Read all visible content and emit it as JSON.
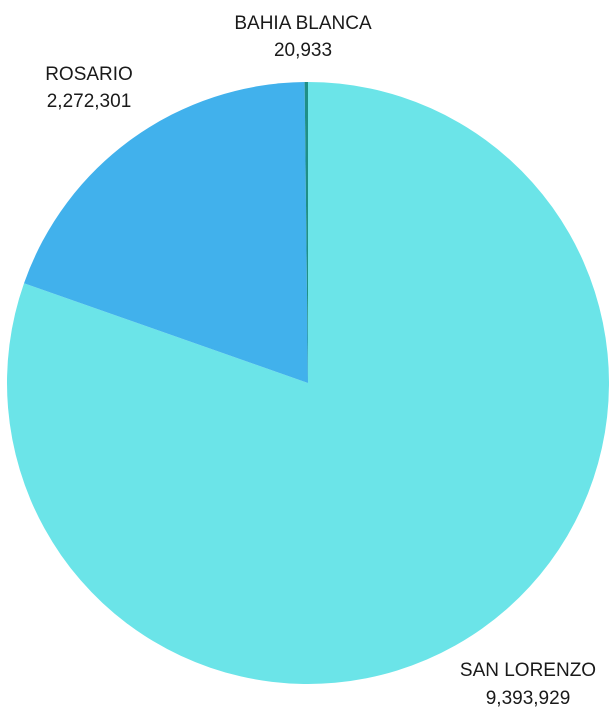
{
  "chart_data": {
    "type": "pie",
    "title": "",
    "slices": [
      {
        "label": "SAN LORENZO",
        "value": 9393929,
        "value_label": "9,393,929",
        "color": "#6be4e8"
      },
      {
        "label": "ROSARIO",
        "value": 2272301,
        "value_label": "2,272,301",
        "color": "#41b1ec"
      },
      {
        "label": "BAHIA BLANCA",
        "value": 20933,
        "value_label": "20,933",
        "color": "#1f8f86"
      }
    ],
    "start": "12 o'clock",
    "direction": "clockwise",
    "legend": "none",
    "data_labels": "outside, category name above value"
  }
}
